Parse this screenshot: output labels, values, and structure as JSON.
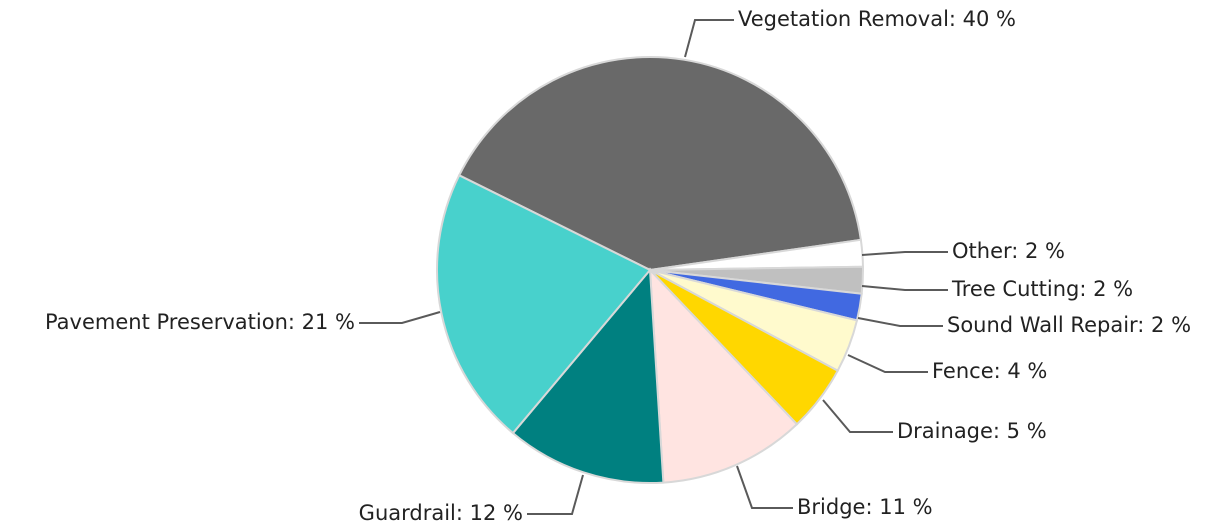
{
  "chart_data": {
    "type": "pie",
    "values": [
      40,
      2,
      2,
      2,
      4,
      5,
      11,
      12,
      21
    ],
    "value_labels": [
      "Vegetation Removal: 40 %",
      "Other: 2 %",
      "Tree Cutting: 2 %",
      "Sound Wall Repair: 2 %",
      "Fence: 4 %",
      "Drainage: 5 %",
      "Bridge: 11 %",
      "Guardrail: 12 %",
      "Pavement Preservation: 21 %"
    ],
    "colors": [
      "#696969",
      "#ffffff",
      "#c0c0c0",
      "#4169e1",
      "#fffacd",
      "#ffd700",
      "#ffe4e1",
      "#008080",
      "#48d1cc"
    ]
  }
}
